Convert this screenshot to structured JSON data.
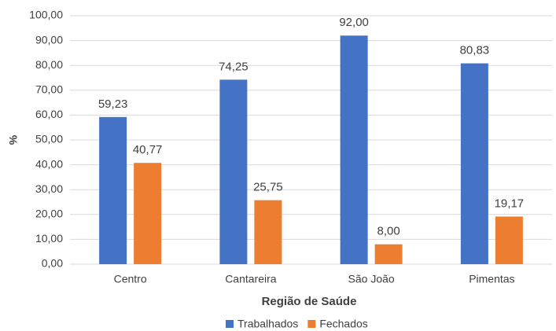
{
  "chart_data": {
    "type": "bar",
    "x_label": "Região de Saúde",
    "y_label": "%",
    "categories": [
      "Centro",
      "Cantareira",
      "São João",
      "Pimentas"
    ],
    "series": [
      {
        "name": "Trabalhados",
        "color": "#4472c4",
        "values": [
          59.23,
          74.25,
          92.0,
          80.83
        ],
        "value_labels": [
          "59,23",
          "74,25",
          "92,00",
          "80,83"
        ]
      },
      {
        "name": "Fechados",
        "color": "#ed7d31",
        "values": [
          40.77,
          25.75,
          8.0,
          19.17
        ],
        "value_labels": [
          "40,77",
          "25,75",
          "8,00",
          "19,17"
        ]
      }
    ],
    "ylim": [
      0,
      100
    ],
    "yticks": [
      {
        "value": 0,
        "label": "0,00"
      },
      {
        "value": 10,
        "label": "10,00"
      },
      {
        "value": 20,
        "label": "20,00"
      },
      {
        "value": 30,
        "label": "30,00"
      },
      {
        "value": 40,
        "label": "40,00"
      },
      {
        "value": 50,
        "label": "50,00"
      },
      {
        "value": 60,
        "label": "60,00"
      },
      {
        "value": 70,
        "label": "70,00"
      },
      {
        "value": 80,
        "label": "80,00"
      },
      {
        "value": 90,
        "label": "90,00"
      },
      {
        "value": 100,
        "label": "100,00"
      }
    ],
    "grid": true
  }
}
